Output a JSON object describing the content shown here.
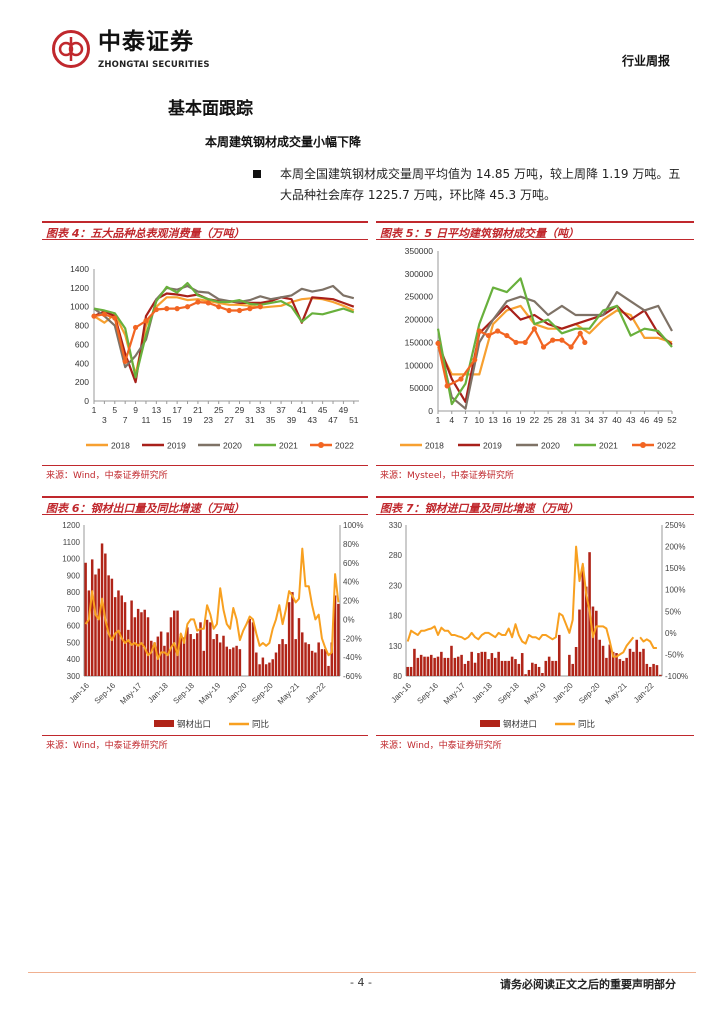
{
  "header": {
    "logo_cn": "中泰证券",
    "logo_en": "ZHONGTAI SECURITIES",
    "doc_type": "行业周报"
  },
  "section": {
    "title": "基本面跟踪",
    "subtitle": "本周建筑钢材成交量小幅下降",
    "paragraph": "本周全国建筑钢材成交量周平均值为 14.85 万吨，较上周降 1.19 万吨。五大品种社会库存 1225.7 万吨，环比降 45.3 万吨。"
  },
  "colors": {
    "brand": "#C0282D",
    "s2018": "#F7A030",
    "s2019": "#A8201A",
    "s2020": "#7E7266",
    "s2021": "#68B03C",
    "s2022": "#F26522",
    "bar": "#B02418",
    "yoy": "#F8A020"
  },
  "chart_data": [
    {
      "type": "line",
      "title": "图表 4：五大品种总表观消费量（万吨）",
      "source": "来源：Wind，中泰证券研究所",
      "ylim": [
        0,
        1400
      ],
      "yticks": [
        "0",
        "200",
        "400",
        "600",
        "800",
        "1000",
        "1200",
        "1400"
      ],
      "xlim": [
        1,
        52
      ],
      "xticks": [
        "1",
        "3",
        "5",
        "7",
        "9",
        "11",
        "13",
        "15",
        "17",
        "19",
        "21",
        "23",
        "25",
        "27",
        "29",
        "31",
        "33",
        "35",
        "37",
        "39",
        "41",
        "43",
        "45",
        "47",
        "49",
        "51"
      ],
      "legend": "bottom",
      "series": [
        {
          "name": "2018",
          "x": [
            1,
            3,
            5,
            7,
            9,
            11,
            13,
            15,
            17,
            19,
            21,
            23,
            25,
            27,
            29,
            31,
            33,
            35,
            37,
            39,
            41,
            43,
            45,
            47,
            49,
            51
          ],
          "values": [
            900,
            830,
            920,
            700,
            280,
            800,
            1000,
            1100,
            1100,
            1070,
            1080,
            1060,
            1040,
            1020,
            1020,
            1010,
            990,
            1000,
            1010,
            1050,
            1080,
            1090,
            1080,
            1050,
            1010,
            960
          ]
        },
        {
          "name": "2019",
          "x": [
            1,
            3,
            5,
            7,
            9,
            11,
            13,
            15,
            17,
            19,
            21,
            23,
            25,
            27,
            29,
            31,
            33,
            35,
            37,
            39,
            41,
            43,
            45,
            47,
            49,
            51
          ],
          "values": [
            900,
            950,
            900,
            500,
            200,
            900,
            1080,
            1140,
            1130,
            1110,
            1130,
            1080,
            1060,
            1060,
            1040,
            1040,
            1040,
            1060,
            1100,
            1080,
            830,
            1100,
            1090,
            1080,
            1040,
            1000
          ]
        },
        {
          "name": "2020",
          "x": [
            1,
            3,
            5,
            7,
            9,
            11,
            13,
            15,
            17,
            19,
            21,
            23,
            25,
            27,
            29,
            31,
            33,
            35,
            37,
            39,
            41,
            43,
            45,
            47,
            49,
            51
          ],
          "values": [
            980,
            900,
            800,
            360,
            480,
            650,
            1080,
            1200,
            1180,
            1220,
            1160,
            1150,
            1080,
            1060,
            1050,
            1070,
            1110,
            1080,
            1100,
            1120,
            1190,
            1160,
            1180,
            1220,
            1120,
            1090
          ]
        },
        {
          "name": "2021",
          "x": [
            1,
            3,
            5,
            7,
            9,
            11,
            13,
            15,
            17,
            19,
            21,
            23,
            25,
            27,
            29,
            31,
            33,
            35,
            37,
            39,
            41,
            43,
            45,
            47,
            49,
            51
          ],
          "values": [
            980,
            960,
            930,
            770,
            250,
            700,
            1060,
            1210,
            1150,
            1250,
            1120,
            1080,
            1050,
            1050,
            1070,
            1030,
            1020,
            1040,
            1060,
            1000,
            840,
            930,
            920,
            950,
            980,
            940
          ]
        },
        {
          "name": "2022",
          "x": [
            1,
            3,
            5,
            7,
            9,
            11,
            13,
            15,
            17,
            19,
            21,
            23,
            25,
            27,
            29,
            31,
            33
          ],
          "values": [
            900,
            920,
            880,
            420,
            780,
            850,
            970,
            980,
            980,
            1000,
            1050,
            1040,
            1000,
            960,
            960,
            980,
            1000
          ],
          "markers": true
        }
      ]
    },
    {
      "type": "line",
      "title": "图表 5：5 日平均建筑钢材成交量（吨）",
      "source": "来源：Mysteel，中泰证券研究所",
      "ylim": [
        0,
        350000
      ],
      "yticks": [
        "0",
        "50000",
        "100000",
        "150000",
        "200000",
        "250000",
        "300000",
        "350000"
      ],
      "xlim": [
        1,
        52
      ],
      "xticks": [
        "1",
        "4",
        "7",
        "10",
        "13",
        "16",
        "19",
        "22",
        "25",
        "28",
        "31",
        "34",
        "37",
        "40",
        "43",
        "46",
        "49",
        "52"
      ],
      "legend": "bottom",
      "series": [
        {
          "name": "2018",
          "x": [
            1,
            4,
            7,
            10,
            13,
            16,
            19,
            22,
            25,
            28,
            31,
            34,
            37,
            40,
            43,
            46,
            49,
            52
          ],
          "values": [
            140000,
            80000,
            80000,
            80000,
            190000,
            220000,
            230000,
            190000,
            180000,
            180000,
            190000,
            170000,
            200000,
            220000,
            210000,
            160000,
            160000,
            150000
          ]
        },
        {
          "name": "2019",
          "x": [
            1,
            4,
            7,
            10,
            13,
            16,
            19,
            22,
            25,
            28,
            31,
            34,
            37,
            40,
            43,
            46,
            49,
            52
          ],
          "values": [
            150000,
            70000,
            20000,
            170000,
            200000,
            230000,
            200000,
            210000,
            190000,
            180000,
            190000,
            200000,
            210000,
            230000,
            200000,
            220000,
            170000,
            145000
          ]
        },
        {
          "name": "2020",
          "x": [
            1,
            4,
            7,
            10,
            13,
            16,
            19,
            22,
            25,
            28,
            31,
            34,
            37,
            40,
            43,
            46,
            49,
            52
          ],
          "values": [
            155000,
            30000,
            5000,
            150000,
            200000,
            240000,
            250000,
            240000,
            210000,
            230000,
            210000,
            210000,
            210000,
            260000,
            240000,
            220000,
            230000,
            175000
          ]
        },
        {
          "name": "2021",
          "x": [
            1,
            4,
            7,
            10,
            13,
            16,
            19,
            22,
            25,
            28,
            31,
            34,
            37,
            40,
            43,
            46,
            49,
            52
          ],
          "values": [
            180000,
            15000,
            60000,
            190000,
            270000,
            260000,
            290000,
            190000,
            200000,
            170000,
            180000,
            180000,
            220000,
            230000,
            165000,
            180000,
            175000,
            140000
          ]
        },
        {
          "name": "2022",
          "x": [
            1,
            3,
            6,
            9,
            10,
            12,
            14,
            16,
            18,
            20,
            22,
            24,
            26,
            28,
            30,
            32,
            33
          ],
          "values": [
            148000,
            55000,
            70000,
            112000,
            175000,
            165000,
            175000,
            165000,
            150000,
            150000,
            180000,
            140000,
            155000,
            155000,
            140000,
            170000,
            150000
          ],
          "markers": true
        }
      ]
    },
    {
      "type": "bar",
      "title": "图表 6：钢材出口量及同比增速（万吨）",
      "source": "来源：Wind，中泰证券研究所",
      "ylim": [
        300,
        1200
      ],
      "yticks": [
        "300",
        "400",
        "500",
        "600",
        "700",
        "800",
        "900",
        "1000",
        "1100",
        "1200"
      ],
      "y2lim": [
        -60,
        100
      ],
      "y2ticks": [
        "-60%",
        "-40%",
        "-20%",
        "0%",
        "20%",
        "40%",
        "60%",
        "80%",
        "100%"
      ],
      "xticks": [
        "Jan-16",
        "Sep-16",
        "May-17",
        "Jan-18",
        "Sep-18",
        "May-19",
        "Jan-20",
        "Sep-20",
        "May-21",
        "Jan-22"
      ],
      "legend": "bottom",
      "series": [
        {
          "name": "钢材出口",
          "axis": "left",
          "values": [
            975,
            810,
            995,
            905,
            940,
            1090,
            1030,
            900,
            880,
            770,
            810,
            780,
            740,
            575,
            750,
            650,
            700,
            680,
            695,
            650,
            510,
            500,
            535,
            565,
            480,
            560,
            650,
            690,
            690,
            550,
            530,
            590,
            550,
            520,
            555,
            620,
            450,
            635,
            620,
            520,
            550,
            500,
            540,
            475,
            460,
            470,
            480,
            460,
            null,
            null,
            640,
            620,
            440,
            370,
            410,
            370,
            380,
            400,
            440,
            490,
            520,
            490,
            740,
            800,
            520,
            645,
            560,
            500,
            490,
            450,
            440,
            500,
            460,
            460,
            360,
            500,
            780,
            730
          ]
        },
        {
          "name": "同比",
          "axis": "right",
          "values": [
            -5,
            0,
            30,
            5,
            0,
            22,
            0,
            -15,
            -22,
            -15,
            -12,
            -20,
            -25,
            -22,
            -27,
            -25,
            -28,
            -25,
            -30,
            -38,
            -35,
            -25,
            -42,
            -35,
            -35,
            -38,
            -30,
            -25,
            -38,
            -15,
            -25,
            -5,
            0,
            0,
            -12,
            -10,
            -10,
            15,
            5,
            -10,
            -5,
            33,
            10,
            -5,
            -10,
            12,
            0,
            -22,
            -12,
            -5,
            3,
            0,
            -15,
            -28,
            -25,
            -28,
            -25,
            -10,
            0,
            15,
            -5,
            10,
            30,
            25,
            18,
            22,
            75,
            35,
            35,
            15,
            0,
            5,
            -20,
            -30,
            -38,
            -35,
            48,
            18
          ]
        }
      ]
    },
    {
      "type": "bar",
      "title": "图表 7：钢材进口量及同比增速（万吨）",
      "source": "来源：Wind，中泰证券研究所",
      "ylim": [
        80,
        330
      ],
      "yticks": [
        "80",
        "130",
        "180",
        "230",
        "280",
        "330"
      ],
      "y2lim": [
        -100,
        250
      ],
      "y2ticks": [
        "-100%",
        "-50%",
        "0%",
        "50%",
        "100%",
        "150%",
        "200%",
        "250%"
      ],
      "xticks": [
        "Jan-16",
        "Sep-16",
        "May-17",
        "Jan-18",
        "Sep-18",
        "May-19",
        "Jan-20",
        "Sep-20",
        "May-21",
        "Jan-22"
      ],
      "legend": "bottom",
      "series": [
        {
          "name": "钢材进口",
          "axis": "left",
          "values": [
            95,
            95,
            125,
            110,
            115,
            112,
            112,
            115,
            110,
            112,
            120,
            110,
            110,
            130,
            110,
            112,
            115,
            100,
            105,
            120,
            102,
            118,
            120,
            120,
            108,
            118,
            110,
            120,
            105,
            105,
            105,
            112,
            108,
            100,
            118,
            83,
            90,
            102,
            100,
            95,
            85,
            105,
            112,
            105,
            105,
            148,
            null,
            null,
            115,
            100,
            128,
            190,
            260,
            228,
            285,
            195,
            188,
            140,
            130,
            110,
            132,
            120,
            118,
            108,
            105,
            110,
            125,
            120,
            140,
            120,
            125,
            100,
            95,
            100,
            98,
            82
          ]
        },
        {
          "name": "同比",
          "axis": "right",
          "values": [
            -20,
            5,
            0,
            -5,
            5,
            5,
            8,
            10,
            15,
            -5,
            12,
            5,
            5,
            -5,
            -5,
            -8,
            -10,
            -15,
            -10,
            0,
            -10,
            -15,
            -5,
            0,
            0,
            -5,
            -10,
            0,
            -5,
            -5,
            10,
            -10,
            20,
            -5,
            -20,
            -25,
            -5,
            -10,
            -10,
            -15,
            -5,
            -5,
            -10,
            -15,
            -10,
            45,
            40,
            20,
            0,
            30,
            200,
            120,
            160,
            90,
            50,
            -10,
            15,
            15,
            15,
            10,
            -20,
            -55,
            -55,
            -50,
            -45,
            -30,
            -20,
            -10,
            null,
            -10,
            -20,
            -15,
            -20,
            -35,
            -35,
            null
          ]
        }
      ]
    }
  ],
  "footer": {
    "page": "- 4 -",
    "disclaimer": "请务必阅读正文之后的重要声明部分"
  }
}
